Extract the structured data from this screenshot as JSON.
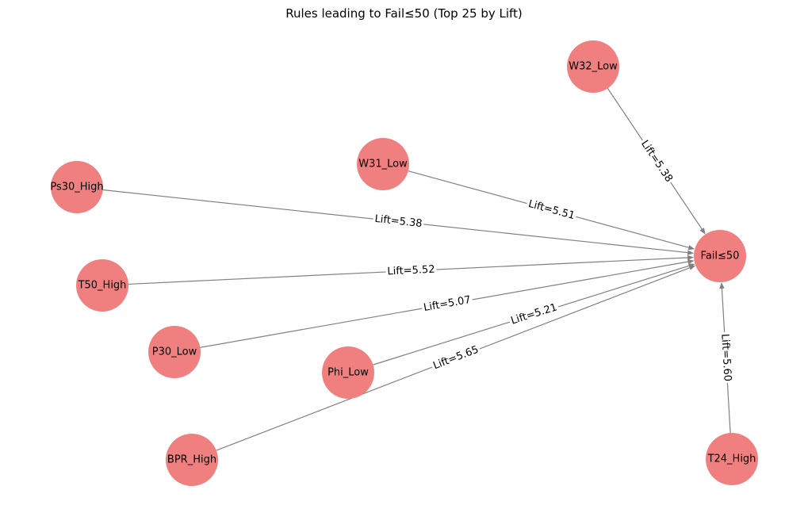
{
  "title": "Rules leading to Fail≤50 (Top 25 by Lift)",
  "colors": {
    "node": "#f08080",
    "edge": "#808080",
    "label_bg": "#ffffff"
  },
  "target": "Fail≤50",
  "nodes": [
    "W32_Low",
    "W31_Low",
    "Ps30_High",
    "T50_High",
    "P30_Low",
    "Phi_Low",
    "BPR_High",
    "T24_High",
    "Fail≤50"
  ],
  "edges": [
    {
      "source": "W32_Low",
      "target": "Fail≤50",
      "label": "Lift=5.38"
    },
    {
      "source": "W31_Low",
      "target": "Fail≤50",
      "label": "Lift=5.51"
    },
    {
      "source": "Ps30_High",
      "target": "Fail≤50",
      "label": "Lift=5.38"
    },
    {
      "source": "T50_High",
      "target": "Fail≤50",
      "label": "Lift=5.52"
    },
    {
      "source": "P30_Low",
      "target": "Fail≤50",
      "label": "Lift=5.07"
    },
    {
      "source": "Phi_Low",
      "target": "Fail≤50",
      "label": "Lift=5.21"
    },
    {
      "source": "BPR_High",
      "target": "Fail≤50",
      "label": "Lift=5.65"
    },
    {
      "source": "T24_High",
      "target": "Fail≤50",
      "label": "Lift=5.60"
    }
  ]
}
